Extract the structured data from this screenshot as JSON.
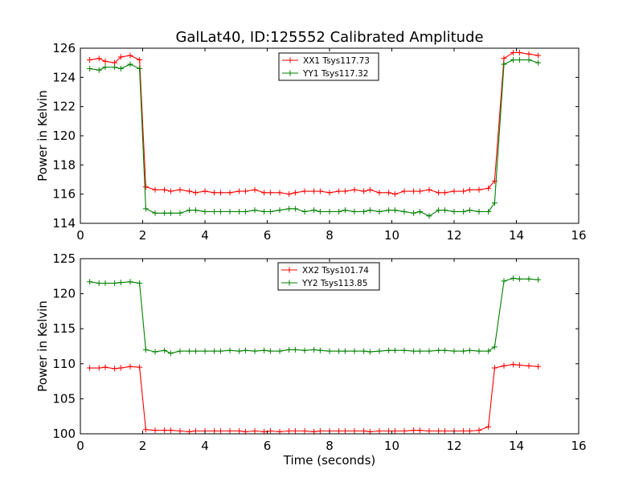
{
  "title": "GalLat40, ID:125552 Calibrated Amplitude",
  "chart_data": [
    {
      "type": "line",
      "title": "GalLat40, ID:125552 Calibrated Amplitude",
      "xlabel": "",
      "ylabel": "Power in Kelvin",
      "xlim": [
        0,
        16
      ],
      "ylim": [
        114,
        126
      ],
      "xticks": [
        0,
        2,
        4,
        6,
        8,
        10,
        12,
        14,
        16
      ],
      "yticks": [
        114,
        116,
        118,
        120,
        122,
        124,
        126
      ],
      "grid": false,
      "legend_position": "top-center",
      "x": [
        0.3,
        0.6,
        0.8,
        1.1,
        1.3,
        1.6,
        1.9,
        2.1,
        2.4,
        2.7,
        2.9,
        3.2,
        3.5,
        3.7,
        4.0,
        4.3,
        4.5,
        4.8,
        5.1,
        5.3,
        5.6,
        5.9,
        6.1,
        6.4,
        6.7,
        6.9,
        7.2,
        7.5,
        7.7,
        8.0,
        8.3,
        8.5,
        8.8,
        9.1,
        9.3,
        9.6,
        9.9,
        10.1,
        10.4,
        10.7,
        10.9,
        11.2,
        11.5,
        11.7,
        12.0,
        12.3,
        12.5,
        12.8,
        13.1,
        13.3,
        13.6,
        13.9,
        14.1,
        14.4,
        14.7
      ],
      "series": [
        {
          "name": "XX1 Tsys117.73",
          "color": "#ff0000",
          "values": [
            125.2,
            125.3,
            125.1,
            125.0,
            125.4,
            125.5,
            125.2,
            116.5,
            116.3,
            116.3,
            116.2,
            116.3,
            116.2,
            116.1,
            116.2,
            116.1,
            116.1,
            116.1,
            116.2,
            116.2,
            116.3,
            116.1,
            116.1,
            116.1,
            116.0,
            116.1,
            116.2,
            116.2,
            116.2,
            116.1,
            116.2,
            116.2,
            116.3,
            116.2,
            116.3,
            116.1,
            116.1,
            116.0,
            116.2,
            116.2,
            116.2,
            116.3,
            116.1,
            116.1,
            116.2,
            116.2,
            116.3,
            116.3,
            116.4,
            116.9,
            125.3,
            125.7,
            125.7,
            125.6,
            125.5
          ]
        },
        {
          "name": "YY1 Tsys117.32",
          "color": "#008000",
          "values": [
            124.6,
            124.5,
            124.7,
            124.7,
            124.6,
            124.9,
            124.6,
            115.0,
            114.7,
            114.7,
            114.7,
            114.7,
            114.9,
            114.9,
            114.8,
            114.8,
            114.8,
            114.8,
            114.8,
            114.8,
            114.9,
            114.8,
            114.8,
            114.9,
            115.0,
            115.0,
            114.8,
            114.9,
            114.8,
            114.8,
            114.8,
            114.9,
            114.8,
            114.8,
            114.9,
            114.8,
            114.9,
            114.9,
            114.8,
            114.7,
            114.8,
            114.5,
            114.9,
            114.9,
            114.8,
            114.8,
            114.9,
            114.8,
            114.8,
            115.4,
            124.9,
            125.2,
            125.2,
            125.2,
            125.0
          ]
        }
      ]
    },
    {
      "type": "line",
      "title": "",
      "xlabel": "Time (seconds)",
      "ylabel": "Power in Kelvin",
      "xlim": [
        0,
        16
      ],
      "ylim": [
        100,
        125
      ],
      "xticks": [
        0,
        2,
        4,
        6,
        8,
        10,
        12,
        14,
        16
      ],
      "yticks": [
        100,
        105,
        110,
        115,
        120,
        125
      ],
      "grid": false,
      "legend_position": "top-center",
      "x": [
        0.3,
        0.6,
        0.8,
        1.1,
        1.3,
        1.6,
        1.9,
        2.1,
        2.4,
        2.7,
        2.9,
        3.2,
        3.5,
        3.7,
        4.0,
        4.3,
        4.5,
        4.8,
        5.1,
        5.3,
        5.6,
        5.9,
        6.1,
        6.4,
        6.7,
        6.9,
        7.2,
        7.5,
        7.7,
        8.0,
        8.3,
        8.5,
        8.8,
        9.1,
        9.3,
        9.6,
        9.9,
        10.1,
        10.4,
        10.7,
        10.9,
        11.2,
        11.5,
        11.7,
        12.0,
        12.3,
        12.5,
        12.8,
        13.1,
        13.3,
        13.6,
        13.9,
        14.1,
        14.4,
        14.7
      ],
      "series": [
        {
          "name": "XX2 Tsys101.74",
          "color": "#ff0000",
          "values": [
            109.4,
            109.4,
            109.5,
            109.3,
            109.4,
            109.6,
            109.5,
            100.6,
            100.5,
            100.5,
            100.5,
            100.4,
            100.3,
            100.4,
            100.4,
            100.4,
            100.4,
            100.4,
            100.4,
            100.3,
            100.4,
            100.3,
            100.4,
            100.3,
            100.4,
            100.4,
            100.4,
            100.3,
            100.4,
            100.4,
            100.4,
            100.4,
            100.4,
            100.4,
            100.3,
            100.4,
            100.4,
            100.4,
            100.4,
            100.5,
            100.5,
            100.4,
            100.4,
            100.4,
            100.4,
            100.4,
            100.4,
            100.5,
            101.0,
            109.4,
            109.7,
            109.9,
            109.8,
            109.7,
            109.6
          ]
        },
        {
          "name": "YY2 Tsys113.85",
          "color": "#008000",
          "values": [
            121.7,
            121.5,
            121.5,
            121.5,
            121.6,
            121.7,
            121.5,
            112.0,
            111.7,
            111.9,
            111.5,
            111.8,
            111.8,
            111.8,
            111.8,
            111.8,
            111.8,
            111.9,
            111.8,
            111.9,
            111.8,
            111.9,
            111.8,
            111.8,
            112.0,
            112.0,
            111.9,
            112.0,
            111.9,
            111.8,
            111.8,
            111.8,
            111.8,
            111.8,
            111.7,
            111.8,
            111.9,
            111.9,
            111.9,
            111.8,
            111.8,
            111.8,
            111.9,
            111.9,
            111.8,
            111.8,
            111.9,
            111.8,
            111.8,
            112.4,
            121.8,
            122.2,
            122.1,
            122.1,
            122.0
          ]
        }
      ]
    }
  ]
}
